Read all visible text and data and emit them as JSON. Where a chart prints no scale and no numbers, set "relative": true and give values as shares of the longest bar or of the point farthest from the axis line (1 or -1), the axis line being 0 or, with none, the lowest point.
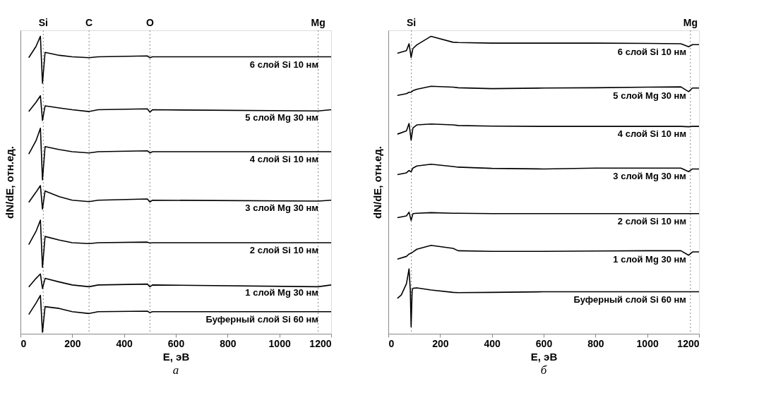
{
  "chart_data": [
    {
      "type": "line",
      "title": "а",
      "xlabel": "E, эВ",
      "ylabel": "dN/dE, отн.ед.",
      "relative": true,
      "xlim": [
        0,
        1200
      ],
      "xticks": [
        0,
        200,
        400,
        600,
        800,
        1000,
        1200
      ],
      "grid": false,
      "legend": false,
      "line_style": "solid",
      "x": [
        32,
        60,
        77,
        85,
        95,
        150,
        200,
        265,
        300,
        490,
        500,
        510,
        1150,
        1200
      ],
      "series": [
        {
          "name": "6 слой Si 10 нм",
          "color": "#000000",
          "values": [
            0.928,
            0.966,
            1.0,
            0.842,
            0.946,
            0.936,
            0.931,
            0.928,
            0.931,
            0.934,
            0.928,
            0.931,
            0.931,
            0.931
          ]
        },
        {
          "name": "5 слой Mg 30 нм",
          "color": "#000000",
          "values": [
            0.747,
            0.778,
            0.8,
            0.717,
            0.766,
            0.759,
            0.753,
            0.747,
            0.753,
            0.756,
            0.745,
            0.753,
            0.749,
            0.753
          ]
        },
        {
          "name": "4 слой Si 10 нм",
          "color": "#000000",
          "values": [
            0.604,
            0.649,
            0.691,
            0.517,
            0.629,
            0.619,
            0.612,
            0.608,
            0.612,
            0.615,
            0.608,
            0.612,
            0.612,
            0.612
          ]
        },
        {
          "name": "3 слой Mg 30 нм",
          "color": "#000000",
          "values": [
            0.442,
            0.476,
            0.498,
            0.419,
            0.48,
            0.461,
            0.449,
            0.444,
            0.449,
            0.453,
            0.443,
            0.449,
            0.446,
            0.449
          ]
        },
        {
          "name": "2 слой Si 10 нм",
          "color": "#000000",
          "values": [
            0.3,
            0.344,
            0.382,
            0.223,
            0.327,
            0.315,
            0.306,
            0.303,
            0.306,
            0.308,
            0.305,
            0.306,
            0.306,
            0.306
          ]
        },
        {
          "name": "1 слой Mg 30 нм",
          "color": "#000000",
          "values": [
            0.157,
            0.186,
            0.201,
            0.152,
            0.186,
            0.174,
            0.164,
            0.158,
            0.164,
            0.167,
            0.158,
            0.164,
            0.158,
            0.164
          ]
        },
        {
          "name": "Буферный слой Si 60 нм",
          "color": "#000000",
          "values": [
            0.065,
            0.103,
            0.129,
            0.005,
            0.091,
            0.085,
            0.074,
            0.068,
            0.074,
            0.076,
            0.071,
            0.074,
            0.074,
            0.074
          ]
        }
      ],
      "ref_lines": [
        {
          "axis": "x",
          "value": 88,
          "label": "Si",
          "color": "#888888",
          "line_style": "dotted"
        },
        {
          "axis": "x",
          "value": 265,
          "label": "C",
          "color": "#888888",
          "line_style": "dotted"
        },
        {
          "axis": "x",
          "value": 500,
          "label": "O",
          "color": "#888888",
          "line_style": "dotted"
        },
        {
          "axis": "x",
          "value": 1150,
          "label": "Mg",
          "color": "#888888",
          "line_style": "dotted"
        }
      ]
    },
    {
      "type": "line",
      "title": "б",
      "xlabel": "E, эВ",
      "ylabel": "dN/dE, отн.ед.",
      "relative": true,
      "xlim": [
        0,
        1200
      ],
      "xticks": [
        0,
        200,
        400,
        600,
        800,
        1000,
        1200
      ],
      "grid": false,
      "legend": false,
      "line_style": "solid",
      "x": [
        35,
        70,
        80,
        88,
        95,
        110,
        165,
        250,
        270,
        400,
        600,
        800,
        1000,
        1130,
        1160,
        1175,
        1200
      ],
      "series": [
        {
          "name": "6 слой Si 10 нм",
          "color": "#000000",
          "values": [
            0.943,
            0.952,
            0.975,
            0.929,
            0.959,
            0.971,
            1.0,
            0.98,
            0.979,
            0.977,
            0.977,
            0.977,
            0.976,
            0.975,
            0.965,
            0.972,
            0.972
          ]
        },
        {
          "name": "5 слой Mg 30 нм",
          "color": "#000000",
          "values": [
            0.801,
            0.807,
            0.812,
            0.812,
            0.817,
            0.822,
            0.832,
            0.829,
            0.827,
            0.824,
            0.826,
            0.827,
            0.829,
            0.83,
            0.814,
            0.826,
            0.826
          ]
        },
        {
          "name": "4 слой Si 10 нм",
          "color": "#000000",
          "values": [
            0.671,
            0.682,
            0.707,
            0.651,
            0.692,
            0.702,
            0.705,
            0.702,
            0.7,
            0.698,
            0.697,
            0.697,
            0.697,
            0.697,
            0.696,
            0.697,
            0.697
          ]
        },
        {
          "name": "3 слой Mg 30 нм",
          "color": "#000000",
          "values": [
            0.535,
            0.541,
            0.549,
            0.544,
            0.557,
            0.564,
            0.57,
            0.562,
            0.56,
            0.556,
            0.554,
            0.557,
            0.557,
            0.557,
            0.545,
            0.554,
            0.554
          ]
        },
        {
          "name": "2 слой Si 10 нм",
          "color": "#000000",
          "values": [
            0.39,
            0.396,
            0.409,
            0.381,
            0.404,
            0.405,
            0.407,
            0.405,
            0.405,
            0.404,
            0.404,
            0.404,
            0.404,
            0.404,
            0.404,
            0.404,
            0.404
          ]
        },
        {
          "name": "1 слой Mg 30 нм",
          "color": "#000000",
          "values": [
            0.251,
            0.26,
            0.268,
            0.271,
            0.275,
            0.284,
            0.297,
            0.287,
            0.279,
            0.277,
            0.277,
            0.278,
            0.279,
            0.279,
            0.264,
            0.275,
            0.275
          ]
        },
        {
          "name": "Буферный слой Si 60 нм",
          "x": [
            35,
            50,
            70,
            80,
            85,
            88,
            92,
            95,
            110,
            165,
            250,
            270,
            400,
            600,
            800,
            1000,
            1200
          ],
          "color": "#000000",
          "values": [
            0.119,
            0.13,
            0.168,
            0.218,
            0.145,
            0.023,
            0.145,
            0.153,
            0.154,
            0.147,
            0.139,
            0.138,
            0.139,
            0.141,
            0.141,
            0.141,
            0.141
          ]
        }
      ],
      "ref_lines": [
        {
          "axis": "x",
          "value": 89,
          "label": "Si",
          "color": "#888888",
          "line_style": "dotted"
        },
        {
          "axis": "x",
          "value": 1167,
          "label": "Mg",
          "color": "#888888",
          "line_style": "dotted"
        }
      ]
    }
  ]
}
